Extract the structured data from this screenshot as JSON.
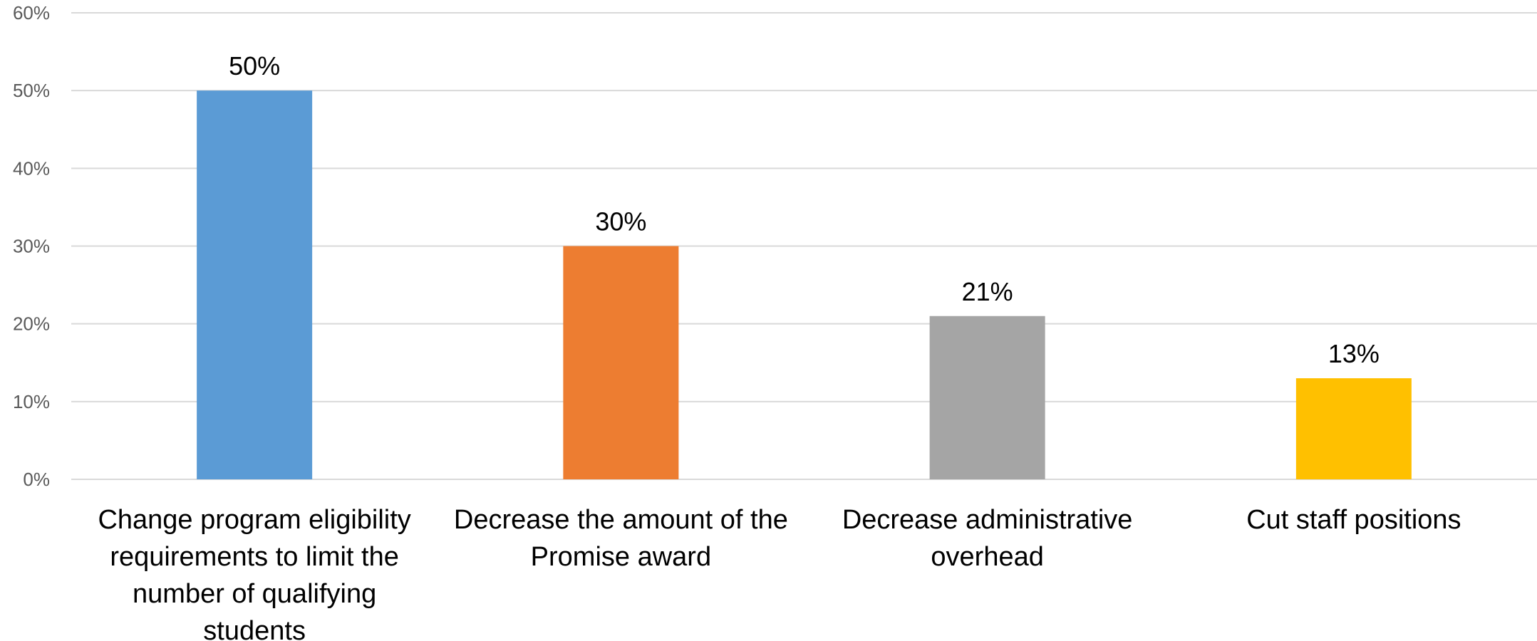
{
  "chart_data": {
    "type": "bar",
    "title": "",
    "xlabel": "",
    "ylabel": "",
    "categories": [
      [
        "Change program eligibility",
        "requirements to limit the",
        "number of qualifying",
        "students"
      ],
      [
        "Decrease the amount of the",
        "Promise award"
      ],
      [
        "Decrease administrative",
        "overhead"
      ],
      [
        "Cut staff positions"
      ]
    ],
    "values": [
      50,
      30,
      21,
      13
    ],
    "data_labels": [
      "50%",
      "30%",
      "21%",
      "13%"
    ],
    "colors": [
      "#5b9bd5",
      "#ed7d31",
      "#a5a5a5",
      "#ffc000"
    ],
    "ylim": [
      0,
      60
    ],
    "y_ticks": [
      0,
      10,
      20,
      30,
      40,
      50,
      60
    ],
    "y_tick_labels": [
      "0%",
      "10%",
      "20%",
      "30%",
      "40%",
      "50%",
      "60%"
    ],
    "grid": true,
    "legend": "none"
  }
}
